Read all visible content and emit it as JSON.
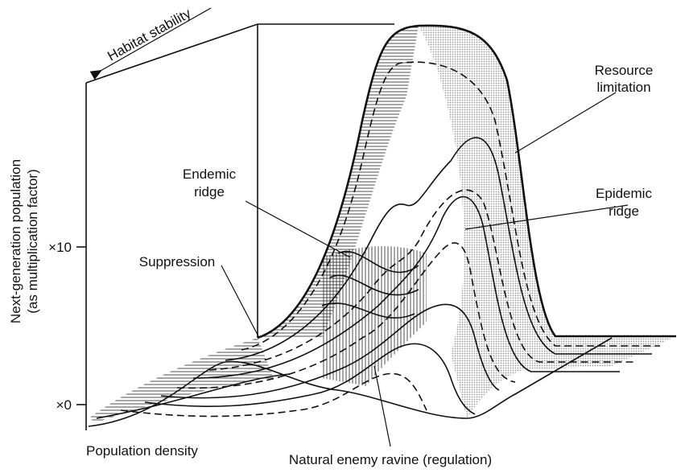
{
  "axes": {
    "depth_label": "Habitat stability",
    "x_label": "Population density",
    "y_label": [
      "Next-generation population",
      "(as multiplication factor)"
    ],
    "y_ticks": [
      "×10",
      "×0"
    ]
  },
  "annotations": [
    {
      "label": [
        "Resource",
        "limitation"
      ]
    },
    {
      "label": [
        "Endemic",
        "ridge"
      ]
    },
    {
      "label": [
        "Epidemic",
        "ridge"
      ]
    },
    {
      "label": [
        "Suppression"
      ]
    },
    {
      "label": [
        "Natural enemy ravine (regulation)"
      ]
    }
  ]
}
